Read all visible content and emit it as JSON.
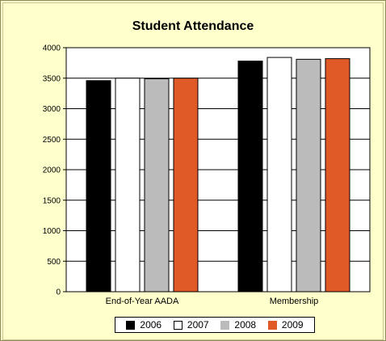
{
  "chart_data": {
    "type": "bar",
    "title": "Student Attendance",
    "xlabel": "",
    "ylabel": "",
    "categories": [
      "End-of-Year AADA",
      "Membership"
    ],
    "series": [
      {
        "name": "2006",
        "values": [
          3460,
          3780
        ],
        "color": "#000000"
      },
      {
        "name": "2007",
        "values": [
          3500,
          3840
        ],
        "color": "#ffffff"
      },
      {
        "name": "2008",
        "values": [
          3490,
          3810
        ],
        "color": "#bbbbbb"
      },
      {
        "name": "2009",
        "values": [
          3500,
          3820
        ],
        "color": "#e05a28"
      }
    ],
    "ylim": [
      0,
      4000
    ],
    "yticks": [
      0,
      500,
      1000,
      1500,
      2000,
      2500,
      3000,
      3500,
      4000
    ],
    "grid": true,
    "legend_position": "bottom"
  }
}
